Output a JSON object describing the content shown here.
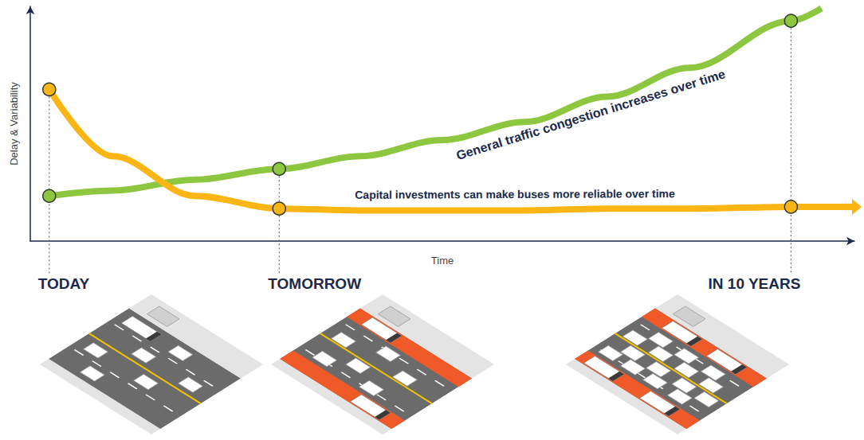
{
  "chart_data": {
    "type": "line",
    "xlabel": "Time",
    "ylabel": "Delay & Variability",
    "x": [
      2.3,
      10,
      20,
      30.2,
      40,
      50,
      60,
      70,
      80,
      92.3,
      96,
      100
    ],
    "series": [
      {
        "color": "#8dc63f",
        "marker": "circle",
        "line_style": "solid",
        "values": [
          25,
          28,
          34,
          40,
          47,
          56,
          66,
          80,
          96,
          122,
          129,
          null
        ]
      },
      {
        "color": "#fbb515",
        "marker": "circle",
        "line_style": "solid",
        "values": [
          84,
          47,
          25,
          18,
          17,
          17,
          17,
          18,
          18,
          19,
          19,
          19
        ]
      }
    ],
    "xlim": [
      0,
      100
    ],
    "ylim": [
      0,
      130
    ],
    "tick_labels": false,
    "grid": false,
    "annotations": [
      {
        "text": "General traffic congestion increases over time",
        "x": 68,
        "y": 70
      },
      {
        "text": "Capital investments can make buses more reliable over time",
        "x": 58.8,
        "y": 26
      },
      {
        "text": "TODAY",
        "x": 2.3
      },
      {
        "text": "TOMORROW",
        "x": 30.2
      },
      {
        "text": "IN 10 YEARS",
        "x": 92.3
      }
    ]
  }
}
